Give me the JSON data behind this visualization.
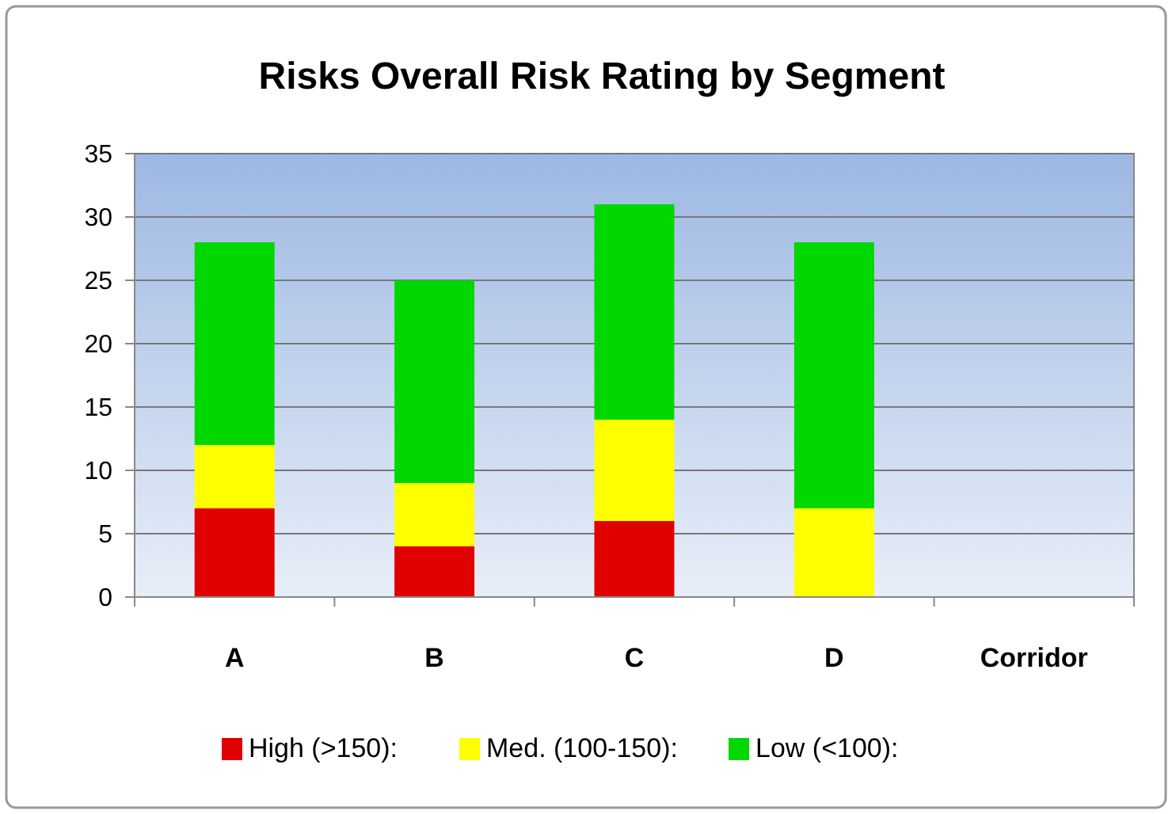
{
  "chart_data": {
    "type": "bar",
    "title": "Risks Overall Risk Rating by Segment",
    "categories": [
      "A",
      "B",
      "C",
      "D",
      "Corridor"
    ],
    "stacked": true,
    "series": [
      {
        "name": "High (>150):",
        "color": "#e00000",
        "values": [
          7,
          4,
          6,
          0,
          0
        ]
      },
      {
        "name": "Med. (100-150):",
        "color": "#ffff00",
        "values": [
          5,
          5,
          8,
          7,
          0
        ]
      },
      {
        "name": "Low (<100):",
        "color": "#00d800",
        "values": [
          16,
          16,
          17,
          21,
          0
        ]
      }
    ],
    "ylim": [
      0,
      35
    ],
    "yticks": [
      0,
      5,
      10,
      15,
      20,
      25,
      30,
      35
    ],
    "grid": "y",
    "legend": "bottom"
  }
}
